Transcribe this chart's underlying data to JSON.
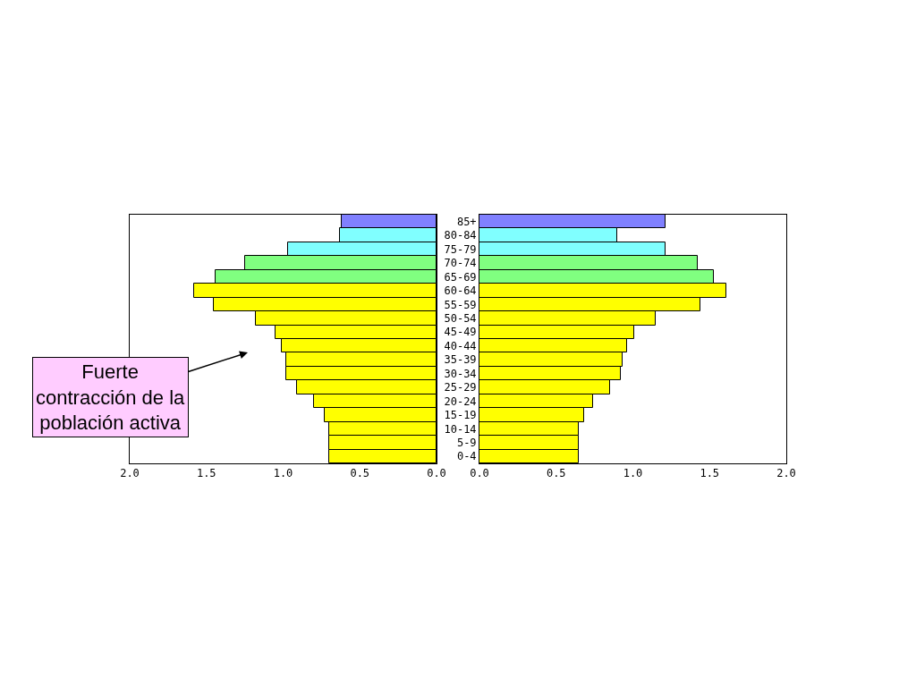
{
  "chart_data": [
    {
      "type": "bar",
      "orientation": "horizontal",
      "categories": [
        null,
        null,
        null,
        null,
        null,
        null,
        null,
        null,
        null,
        null,
        null,
        null,
        null,
        null,
        null,
        null,
        null,
        null
      ],
      "values": [
        0.62,
        0.63,
        0.97,
        1.25,
        1.44,
        1.58,
        1.45,
        1.18,
        1.05,
        1.01,
        0.98,
        0.98,
        0.91,
        0.8,
        0.73,
        0.7,
        0.7,
        0.7
      ],
      "colors": [
        "#8080ff",
        "#80ffff",
        "#80ffff",
        "#80ff80",
        "#80ff80",
        "#ffff00",
        "#ffff00",
        "#ffff00",
        "#ffff00",
        "#ffff00",
        "#ffff00",
        "#ffff00",
        "#ffff00",
        "#ffff00",
        "#ffff00",
        "#ffff00",
        "#ffff00",
        "#ffff00"
      ],
      "xlim": [
        2.0,
        0.0
      ],
      "xticks": [
        {
          "value": 2.0,
          "label": "2.0"
        },
        {
          "value": 1.5,
          "label": "1.5"
        },
        {
          "value": 1.0,
          "label": "1.0"
        },
        {
          "value": 0.5,
          "label": "0.5"
        },
        {
          "value": 0.0,
          "label": "0.0"
        }
      ],
      "annotations": [
        "Fuerte\ncontracción de la\npoblación activa"
      ]
    },
    {
      "type": "bar",
      "orientation": "horizontal",
      "categories": [
        "85+",
        "80-84",
        "75-79",
        "70-74",
        "65-69",
        "60-64",
        "55-59",
        "50-54",
        "45-49",
        "40-44",
        "35-39",
        "30-34",
        "25-29",
        "20-24",
        "15-19",
        "10-14",
        "5-9",
        "0-4"
      ],
      "values": [
        1.21,
        0.9,
        1.21,
        1.42,
        1.53,
        1.61,
        1.44,
        1.15,
        1.01,
        0.96,
        0.93,
        0.92,
        0.85,
        0.74,
        0.68,
        0.65,
        0.65,
        0.65
      ],
      "colors": [
        "#8080ff",
        "#80ffff",
        "#80ffff",
        "#80ff80",
        "#80ff80",
        "#ffff00",
        "#ffff00",
        "#ffff00",
        "#ffff00",
        "#ffff00",
        "#ffff00",
        "#ffff00",
        "#ffff00",
        "#ffff00",
        "#ffff00",
        "#ffff00",
        "#ffff00",
        "#ffff00"
      ],
      "xlim": [
        0.0,
        2.0
      ],
      "xticks": [
        {
          "value": 0.0,
          "label": "0.0"
        },
        {
          "value": 0.5,
          "label": "0.5"
        },
        {
          "value": 1.0,
          "label": "1.0"
        },
        {
          "value": 1.5,
          "label": "1.5"
        },
        {
          "value": 2.0,
          "label": "2.0"
        }
      ]
    }
  ]
}
